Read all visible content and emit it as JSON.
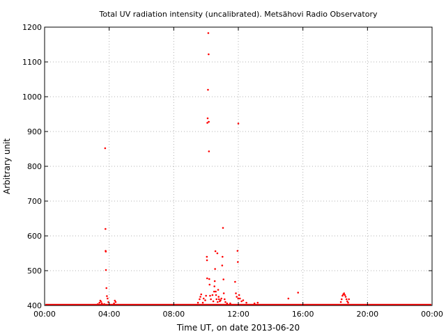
{
  "chart_data": {
    "type": "scatter",
    "title": "Total UV radiation intensity (uncalibrated). Metsähovi Radio Observatory",
    "xlabel": "Time UT, on date 2013-06-20",
    "ylabel": "Arbitrary unit",
    "xlim": [
      0,
      24
    ],
    "ylim": [
      400,
      1200
    ],
    "x_unit": "hours UT",
    "x_ticks": [
      0,
      4,
      8,
      12,
      16,
      20,
      24
    ],
    "x_tick_labels": [
      "00:00",
      "04:00",
      "08:00",
      "12:00",
      "16:00",
      "20:00",
      "00:00"
    ],
    "y_ticks": [
      400,
      500,
      600,
      700,
      800,
      900,
      1000,
      1100,
      1200
    ],
    "y_tick_labels": [
      "400",
      "500",
      "600",
      "700",
      "800",
      "900",
      "1000",
      "1100",
      "1200"
    ],
    "grid": true,
    "marker_color": "#ff0000",
    "baseline": 400,
    "series": [
      {
        "points": [
          [
            3.3,
            404
          ],
          [
            3.4,
            408
          ],
          [
            3.45,
            414
          ],
          [
            3.5,
            411
          ],
          [
            3.55,
            406
          ],
          [
            3.65,
            402
          ],
          [
            3.7,
            404
          ],
          [
            3.75,
            852
          ],
          [
            3.77,
            620
          ],
          [
            3.78,
            557
          ],
          [
            3.79,
            555
          ],
          [
            3.8,
            502
          ],
          [
            3.83,
            450
          ],
          [
            3.86,
            427
          ],
          [
            3.9,
            420
          ],
          [
            3.95,
            410
          ],
          [
            4.3,
            406
          ],
          [
            4.35,
            414
          ],
          [
            4.4,
            410
          ],
          [
            9.5,
            408
          ],
          [
            9.6,
            418
          ],
          [
            9.65,
            425
          ],
          [
            9.7,
            432
          ],
          [
            9.8,
            408
          ],
          [
            9.85,
            420
          ],
          [
            9.95,
            415
          ],
          [
            10.0,
            428
          ],
          [
            10.05,
            540
          ],
          [
            10.06,
            530
          ],
          [
            10.07,
            478
          ],
          [
            10.08,
            925
          ],
          [
            10.1,
            938
          ],
          [
            10.12,
            1020
          ],
          [
            10.14,
            1183
          ],
          [
            10.16,
            1122
          ],
          [
            10.17,
            928
          ],
          [
            10.18,
            843
          ],
          [
            10.2,
            476
          ],
          [
            10.22,
            460
          ],
          [
            10.25,
            428
          ],
          [
            10.3,
            418
          ],
          [
            10.4,
            430
          ],
          [
            10.45,
            412
          ],
          [
            10.5,
            440
          ],
          [
            10.52,
            455
          ],
          [
            10.54,
            470
          ],
          [
            10.56,
            505
          ],
          [
            10.58,
            556
          ],
          [
            10.6,
            440
          ],
          [
            10.62,
            430
          ],
          [
            10.65,
            418
          ],
          [
            10.7,
            550
          ],
          [
            10.72,
            410
          ],
          [
            10.75,
            445
          ],
          [
            10.78,
            425
          ],
          [
            10.8,
            418
          ],
          [
            10.85,
            412
          ],
          [
            10.9,
            415
          ],
          [
            10.95,
            420
          ],
          [
            11.0,
            515
          ],
          [
            11.02,
            540
          ],
          [
            11.05,
            623
          ],
          [
            11.08,
            475
          ],
          [
            11.1,
            435
          ],
          [
            11.15,
            418
          ],
          [
            11.2,
            410
          ],
          [
            11.3,
            406
          ],
          [
            11.5,
            406
          ],
          [
            11.8,
            468
          ],
          [
            11.85,
            435
          ],
          [
            11.9,
            425
          ],
          [
            11.95,
            557
          ],
          [
            11.97,
            525
          ],
          [
            11.99,
            420
          ],
          [
            12.0,
            923
          ],
          [
            12.05,
            430
          ],
          [
            12.1,
            420
          ],
          [
            12.2,
            412
          ],
          [
            12.3,
            415
          ],
          [
            12.5,
            408
          ],
          [
            13.0,
            406
          ],
          [
            13.2,
            408
          ],
          [
            15.1,
            420
          ],
          [
            15.7,
            437
          ],
          [
            18.35,
            410
          ],
          [
            18.4,
            418
          ],
          [
            18.45,
            428
          ],
          [
            18.5,
            432
          ],
          [
            18.55,
            435
          ],
          [
            18.6,
            430
          ],
          [
            18.65,
            425
          ],
          [
            18.7,
            418
          ],
          [
            18.75,
            412
          ],
          [
            18.8,
            408
          ],
          [
            18.85,
            418
          ]
        ]
      }
    ]
  }
}
